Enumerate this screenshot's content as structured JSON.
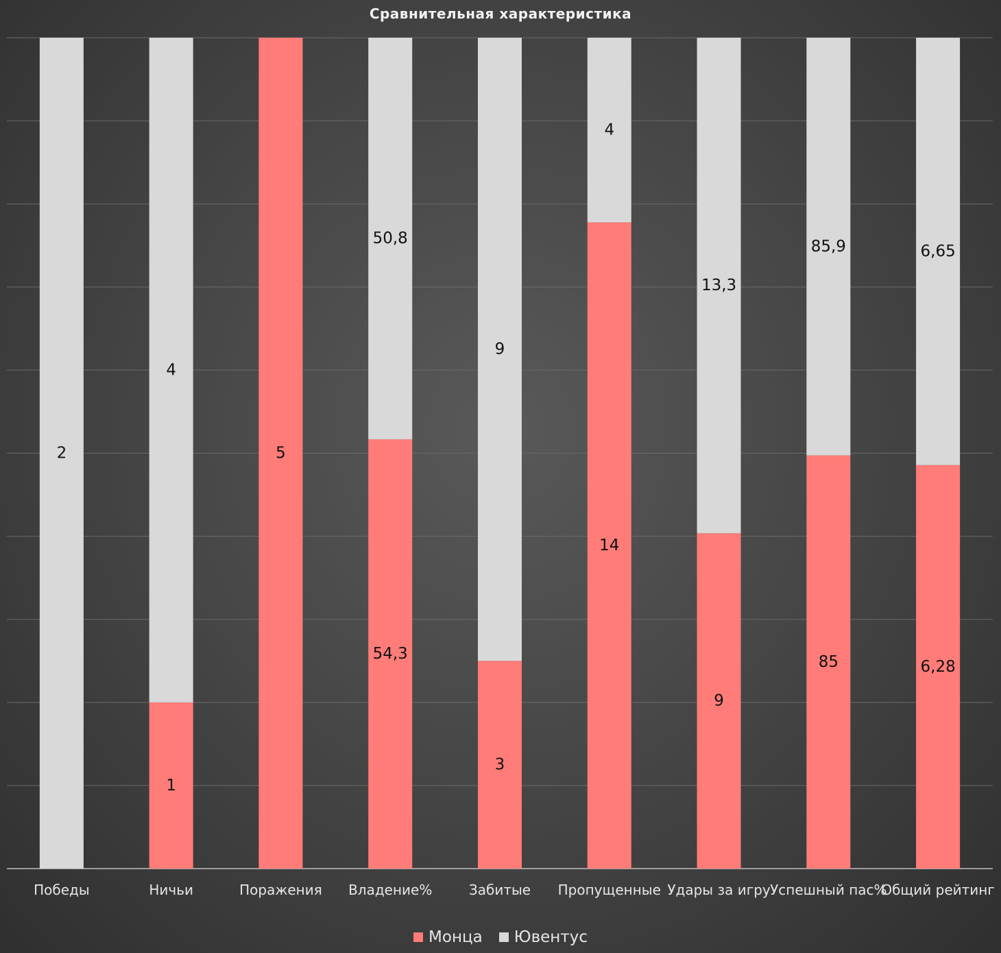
{
  "chart_data": {
    "type": "bar",
    "stacking": "percent",
    "title": "Сравнительная характеристика",
    "categories": [
      "Победы",
      "Ничьи",
      "Поражения",
      "Владение%",
      "Забитые",
      "Пропущенные",
      "Удары за игру",
      "Успешный пас%",
      "Общий рейтинг"
    ],
    "series": [
      {
        "name": "Монца",
        "color": "#FF7C78",
        "values": [
          0,
          1,
          5,
          54.3,
          3,
          14,
          9,
          85,
          6.28
        ],
        "labels": [
          "",
          "1",
          "5",
          "54,3",
          "3",
          "14",
          "9",
          "85",
          "6,28"
        ]
      },
      {
        "name": "Ювентус",
        "color": "#D9D9D9",
        "values": [
          2,
          4,
          0,
          50.8,
          9,
          4,
          13.3,
          85.9,
          6.65
        ],
        "labels": [
          "2",
          "4",
          "",
          "50,8",
          "9",
          "4",
          "13,3",
          "85,9",
          "6,65"
        ]
      }
    ],
    "xlabel": "",
    "ylabel": "",
    "ylim": [
      0,
      100
    ],
    "grid": true,
    "legend_position": "bottom"
  }
}
